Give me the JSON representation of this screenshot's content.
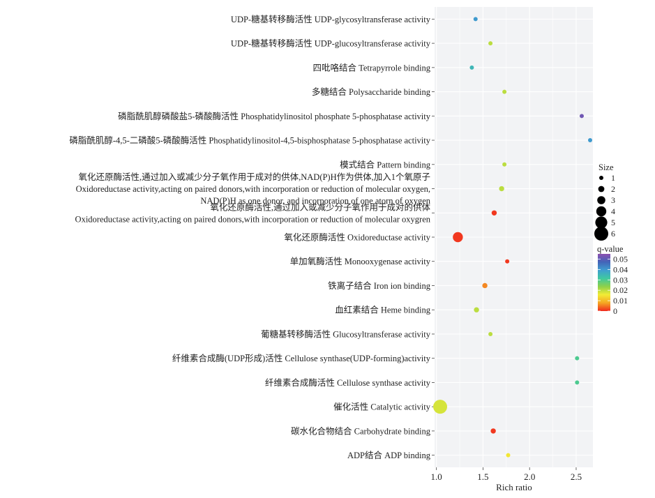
{
  "chart_data": {
    "type": "scatter",
    "xlabel": "Rich ratio",
    "xlim": [
      0.98,
      2.68
    ],
    "xticks": [
      {
        "value": 1.0,
        "label": "1.0"
      },
      {
        "value": 1.5,
        "label": "1.5"
      },
      {
        "value": 2.0,
        "label": "2.0"
      },
      {
        "value": 2.5,
        "label": "2.5"
      }
    ],
    "qlim": [
      0,
      0.055
    ],
    "size_legend": {
      "title": "Size",
      "items": [
        {
          "value": 1,
          "label": "1"
        },
        {
          "value": 2,
          "label": "2"
        },
        {
          "value": 3,
          "label": "3"
        },
        {
          "value": 4,
          "label": "4"
        },
        {
          "value": 5,
          "label": "5"
        },
        {
          "value": 6,
          "label": "6"
        }
      ]
    },
    "color_legend": {
      "title": "q-value",
      "ticks": [
        {
          "value": 0.05,
          "label": "0.05"
        },
        {
          "value": 0.04,
          "label": "0.04"
        },
        {
          "value": 0.03,
          "label": "0.03"
        },
        {
          "value": 0.02,
          "label": "0.02"
        },
        {
          "value": 0.01,
          "label": "0.01"
        },
        {
          "value": 0,
          "label": "0"
        }
      ],
      "stops": [
        "#f0281e",
        "#f5a623",
        "#f2ec35",
        "#8ed04a",
        "#3fc9a0",
        "#3f9fd0",
        "#4264b8",
        "#8c4fb0"
      ]
    },
    "points": [
      {
        "label": [
          "UDP-糖基转移酶活性 UDP-glycosyltransferase activity"
        ],
        "x": 1.42,
        "size": 1,
        "q": 0.04
      },
      {
        "label": [
          "UDP-糖基转移酶活性 UDP-glucosyltransferase activity"
        ],
        "x": 1.58,
        "size": 1,
        "q": 0.02
      },
      {
        "label": [
          "四吡咯结合 Tetrapyrrole binding"
        ],
        "x": 1.38,
        "size": 1,
        "q": 0.035
      },
      {
        "label": [
          "多糖结合 Polysaccharide binding"
        ],
        "x": 1.73,
        "size": 1,
        "q": 0.02
      },
      {
        "label": [
          "磷脂酰肌醇磷酸盐5-磷酸酶活性 Phosphatidylinositol phosphate 5-phosphatase activity"
        ],
        "x": 2.56,
        "size": 1,
        "q": 0.052
      },
      {
        "label": [
          "磷脂酰肌醇-4,5-二磷酸5-磷酸酶活性 Phosphatidylinositol-4,5-bisphosphatase 5-phosphatase activity"
        ],
        "x": 2.65,
        "size": 1,
        "q": 0.04
      },
      {
        "label": [
          "模式结合 Pattern binding"
        ],
        "x": 1.73,
        "size": 1,
        "q": 0.02
      },
      {
        "label": [
          "氧化还原酶活性,通过加入或减少分子氧作用于成对的供体,NAD(P)H作为供体,加入1个氧原子",
          "Oxidoreductase activity,acting on paired donors,with incorporation or reduction of molecular oxygen,",
          "NAD(P)H as one donor, and incorporation of one atorn of oxygen"
        ],
        "x": 1.7,
        "size": 1.5,
        "q": 0.02
      },
      {
        "label": [
          "氧化还原酶活性,通过加入或减少分子氧作用于成对的供体",
          "Oxidoreductase activity,acting on paired donors,with incorporation or reduction of molecular oxygren"
        ],
        "x": 1.62,
        "size": 1.5,
        "q": 0.001
      },
      {
        "label": [
          "氧化还原酶活性 Oxidoreductase activity"
        ],
        "x": 1.23,
        "size": 4,
        "q": 0.001
      },
      {
        "label": [
          "单加氧酶活性 Monooxygenase activity"
        ],
        "x": 1.76,
        "size": 1,
        "q": 0.001
      },
      {
        "label": [
          "铁离子结合 Iron ion binding"
        ],
        "x": 1.52,
        "size": 1.5,
        "q": 0.006
      },
      {
        "label": [
          "血红素结合 Heme binding"
        ],
        "x": 1.43,
        "size": 1.5,
        "q": 0.02
      },
      {
        "label": [
          "葡糖基转移酶活性 Glucosyltransferase activity"
        ],
        "x": 1.58,
        "size": 1,
        "q": 0.02
      },
      {
        "label": [
          "纤维素合成酶(UDP形成)活性 Cellulose synthase(UDP-forming)activity"
        ],
        "x": 2.51,
        "size": 1,
        "q": 0.03
      },
      {
        "label": [
          "纤维素合成酶活性 Cellulose synthase activity"
        ],
        "x": 2.51,
        "size": 1,
        "q": 0.03
      },
      {
        "label": [
          "催化活性 Catalytic activity"
        ],
        "x": 1.04,
        "size": 6,
        "q": 0.018
      },
      {
        "label": [
          "碳水化合物结合 Carbohydrate binding"
        ],
        "x": 1.61,
        "size": 1.5,
        "q": 0.001
      },
      {
        "label": [
          "ADP结合 ADP binding"
        ],
        "x": 1.77,
        "size": 1,
        "q": 0.015
      }
    ]
  }
}
